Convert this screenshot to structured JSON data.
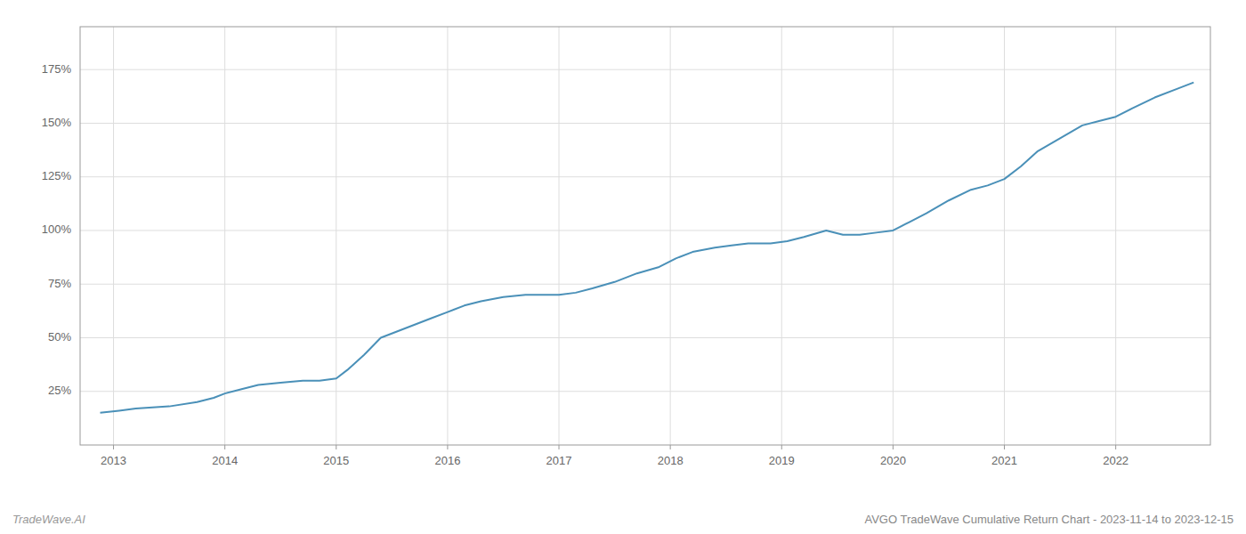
{
  "chart_data": {
    "type": "line",
    "title": "AVGO TradeWave Cumulative Return Chart - 2023-11-14 to 2023-12-15",
    "annotations": [
      "TradeWave.AI"
    ],
    "color": "#4a90b8",
    "grid": true,
    "x": [
      2012.88,
      2013.05,
      2013.2,
      2013.5,
      2013.75,
      2013.9,
      2014.0,
      2014.15,
      2014.3,
      2014.5,
      2014.7,
      2014.85,
      2015.0,
      2015.1,
      2015.25,
      2015.4,
      2015.55,
      2015.7,
      2015.85,
      2016.0,
      2016.15,
      2016.3,
      2016.5,
      2016.7,
      2016.9,
      2017.0,
      2017.15,
      2017.3,
      2017.5,
      2017.7,
      2017.9,
      2018.05,
      2018.2,
      2018.4,
      2018.55,
      2018.7,
      2018.9,
      2019.05,
      2019.2,
      2019.4,
      2019.55,
      2019.7,
      2019.85,
      2020.0,
      2020.15,
      2020.3,
      2020.5,
      2020.7,
      2020.85,
      2021.0,
      2021.15,
      2021.3,
      2021.5,
      2021.7,
      2021.85,
      2022.0,
      2022.15,
      2022.35,
      2022.55,
      2022.7
    ],
    "values": [
      15,
      16,
      17,
      18,
      20,
      22,
      24,
      26,
      28,
      29,
      30,
      30,
      31,
      35,
      42,
      50,
      53,
      56,
      59,
      62,
      65,
      67,
      69,
      70,
      70,
      70,
      71,
      73,
      76,
      80,
      83,
      87,
      90,
      92,
      93,
      94,
      94,
      95,
      97,
      100,
      98,
      98,
      99,
      100,
      104,
      108,
      114,
      119,
      121,
      124,
      130,
      137,
      143,
      149,
      151,
      153,
      157,
      162,
      166,
      169
    ],
    "xlim": [
      2012.7,
      2022.85
    ],
    "xticks": [
      2013,
      2014,
      2015,
      2016,
      2017,
      2018,
      2019,
      2020,
      2021,
      2022
    ],
    "ylim": [
      0,
      195
    ],
    "yticks": [
      {
        "value": 25,
        "label": "25%"
      },
      {
        "value": 50,
        "label": "50%"
      },
      {
        "value": 75,
        "label": "75%"
      },
      {
        "value": 100,
        "label": "100%"
      },
      {
        "value": 125,
        "label": "125%"
      },
      {
        "value": 150,
        "label": "150%"
      },
      {
        "value": 175,
        "label": "175%"
      }
    ]
  }
}
